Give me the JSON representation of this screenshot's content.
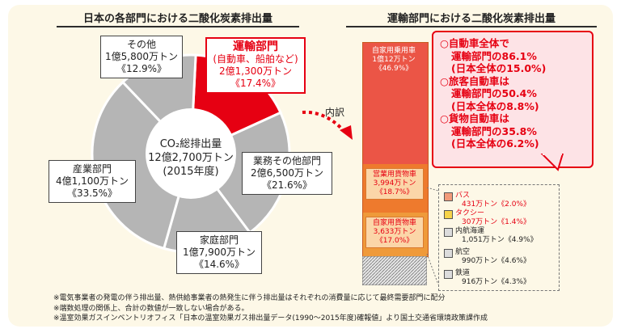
{
  "chart_data": [
    {
      "type": "pie",
      "title": "日本の各部門における二酸化炭素排出量",
      "center_label": [
        "CO₂総排出量",
        "12億2,700万トン",
        "(2015年度)"
      ],
      "slices": [
        {
          "name": "運輸部門",
          "subtitle": "(自動車、船舶など)",
          "amount": "2億1,300万トン",
          "percent_label": "《17.4%》",
          "value": 17.4,
          "color": "#e60012"
        },
        {
          "name": "業務その他部門",
          "amount": "2億6,500万トン",
          "percent_label": "《21.6%》",
          "value": 21.6,
          "color": "#b5b5b5"
        },
        {
          "name": "家庭部門",
          "amount": "1億7,900万トン",
          "percent_label": "《14.6%》",
          "value": 14.6,
          "color": "#b5b5b5"
        },
        {
          "name": "産業部門",
          "amount": "4億1,100万トン",
          "percent_label": "《33.5%》",
          "value": 33.5,
          "color": "#b5b5b5"
        },
        {
          "name": "その他",
          "amount": "1億5,800万トン",
          "percent_label": "《12.9%》",
          "value": 12.9,
          "color": "#b5b5b5"
        }
      ]
    },
    {
      "type": "bar",
      "title": "運輸部門における二酸化炭素排出量",
      "stacked": true,
      "segments": [
        {
          "name": "自家用乗用車",
          "amount": "1億12万トン",
          "percent_label": "《46.9%》",
          "value": 46.9,
          "color": "#eb5546",
          "label_color": "#ffffff"
        },
        {
          "name": "営業用貨物車",
          "amount": "3,994万トン",
          "percent_label": "《18.7%》",
          "value": 18.7,
          "color": "#ee7a2d",
          "label_color": "#e60012"
        },
        {
          "name": "自家用貨物車",
          "amount": "3,633万トン",
          "percent_label": "《17.0%》",
          "value": 17.0,
          "color": "#ef9a3a",
          "label_color": "#e60012"
        },
        {
          "name": "バス",
          "amount": "431万トン《2.0%》",
          "value": 2.0,
          "color": "#f29b7a",
          "label_color": "#e60012"
        },
        {
          "name": "タクシー",
          "amount": "307万トン《1.4%》",
          "value": 1.4,
          "color": "#f7d44a",
          "label_color": "#e60012"
        },
        {
          "name": "内航海運",
          "amount": "1,051万トン《4.9%》",
          "value": 4.9,
          "color": "#dcdcdc",
          "label_color": "#222222"
        },
        {
          "name": "航空",
          "amount": "990万トン《4.6%》",
          "value": 4.6,
          "color": "#dcdcdc",
          "label_color": "#222222"
        },
        {
          "name": "鉄道",
          "amount": "916万トン《4.3%》",
          "value": 4.3,
          "color": "#dcdcdc",
          "label_color": "#222222"
        }
      ]
    }
  ],
  "uchiwake_label": "内訳",
  "callout": [
    "○自動車全体で",
    "運輸部門の86.1%",
    "(日本全体の15.0%)",
    "○旅客自動車は",
    "運輸部門の50.4%",
    "(日本全体の8.8%)",
    "○貨物自動車は",
    "運輸部門の35.8%",
    "(日本全体の6.2%)"
  ],
  "notes": [
    "※電気事業者の発電の伴う排出量、熱供給事業者の熱発生に伴う排出量はそれぞれの消費量に応じて最終需要部門に配分",
    "※端数処理の関係上、合計の数値が一致しない場合がある。",
    "※温室効果ガスインベントリオフィス「日本の温室効果ガス排出量データ(1990～2015年度)確報値」より国土交通省環境政策課作成"
  ]
}
